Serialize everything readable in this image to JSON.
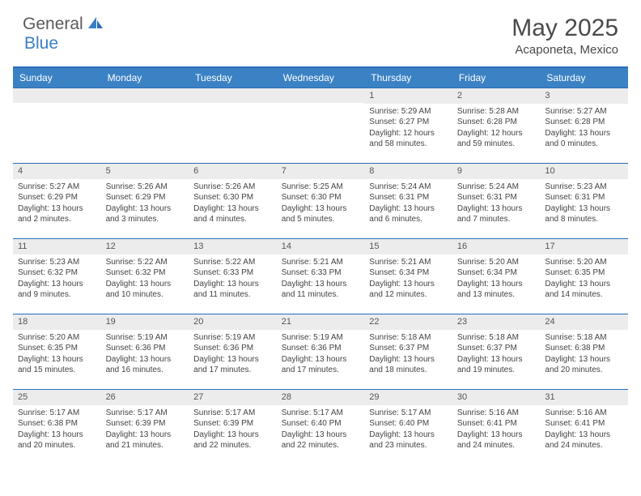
{
  "logo": {
    "text1": "General",
    "text2": "Blue"
  },
  "title": "May 2025",
  "location": "Acaponeta, Mexico",
  "colors": {
    "header_bg": "#3b82c4",
    "header_border": "#2a6db8",
    "daynum_bg": "#ececec",
    "logo_blue": "#3b7fc4",
    "logo_gray": "#5a5a5a",
    "text": "#444444"
  },
  "day_headers": [
    "Sunday",
    "Monday",
    "Tuesday",
    "Wednesday",
    "Thursday",
    "Friday",
    "Saturday"
  ],
  "weeks": [
    [
      null,
      null,
      null,
      null,
      {
        "n": "1",
        "sr": "5:29 AM",
        "ss": "6:27 PM",
        "dl": "12 hours and 58 minutes."
      },
      {
        "n": "2",
        "sr": "5:28 AM",
        "ss": "6:28 PM",
        "dl": "12 hours and 59 minutes."
      },
      {
        "n": "3",
        "sr": "5:27 AM",
        "ss": "6:28 PM",
        "dl": "13 hours and 0 minutes."
      }
    ],
    [
      {
        "n": "4",
        "sr": "5:27 AM",
        "ss": "6:29 PM",
        "dl": "13 hours and 2 minutes."
      },
      {
        "n": "5",
        "sr": "5:26 AM",
        "ss": "6:29 PM",
        "dl": "13 hours and 3 minutes."
      },
      {
        "n": "6",
        "sr": "5:26 AM",
        "ss": "6:30 PM",
        "dl": "13 hours and 4 minutes."
      },
      {
        "n": "7",
        "sr": "5:25 AM",
        "ss": "6:30 PM",
        "dl": "13 hours and 5 minutes."
      },
      {
        "n": "8",
        "sr": "5:24 AM",
        "ss": "6:31 PM",
        "dl": "13 hours and 6 minutes."
      },
      {
        "n": "9",
        "sr": "5:24 AM",
        "ss": "6:31 PM",
        "dl": "13 hours and 7 minutes."
      },
      {
        "n": "10",
        "sr": "5:23 AM",
        "ss": "6:31 PM",
        "dl": "13 hours and 8 minutes."
      }
    ],
    [
      {
        "n": "11",
        "sr": "5:23 AM",
        "ss": "6:32 PM",
        "dl": "13 hours and 9 minutes."
      },
      {
        "n": "12",
        "sr": "5:22 AM",
        "ss": "6:32 PM",
        "dl": "13 hours and 10 minutes."
      },
      {
        "n": "13",
        "sr": "5:22 AM",
        "ss": "6:33 PM",
        "dl": "13 hours and 11 minutes."
      },
      {
        "n": "14",
        "sr": "5:21 AM",
        "ss": "6:33 PM",
        "dl": "13 hours and 11 minutes."
      },
      {
        "n": "15",
        "sr": "5:21 AM",
        "ss": "6:34 PM",
        "dl": "13 hours and 12 minutes."
      },
      {
        "n": "16",
        "sr": "5:20 AM",
        "ss": "6:34 PM",
        "dl": "13 hours and 13 minutes."
      },
      {
        "n": "17",
        "sr": "5:20 AM",
        "ss": "6:35 PM",
        "dl": "13 hours and 14 minutes."
      }
    ],
    [
      {
        "n": "18",
        "sr": "5:20 AM",
        "ss": "6:35 PM",
        "dl": "13 hours and 15 minutes."
      },
      {
        "n": "19",
        "sr": "5:19 AM",
        "ss": "6:36 PM",
        "dl": "13 hours and 16 minutes."
      },
      {
        "n": "20",
        "sr": "5:19 AM",
        "ss": "6:36 PM",
        "dl": "13 hours and 17 minutes."
      },
      {
        "n": "21",
        "sr": "5:19 AM",
        "ss": "6:36 PM",
        "dl": "13 hours and 17 minutes."
      },
      {
        "n": "22",
        "sr": "5:18 AM",
        "ss": "6:37 PM",
        "dl": "13 hours and 18 minutes."
      },
      {
        "n": "23",
        "sr": "5:18 AM",
        "ss": "6:37 PM",
        "dl": "13 hours and 19 minutes."
      },
      {
        "n": "24",
        "sr": "5:18 AM",
        "ss": "6:38 PM",
        "dl": "13 hours and 20 minutes."
      }
    ],
    [
      {
        "n": "25",
        "sr": "5:17 AM",
        "ss": "6:38 PM",
        "dl": "13 hours and 20 minutes."
      },
      {
        "n": "26",
        "sr": "5:17 AM",
        "ss": "6:39 PM",
        "dl": "13 hours and 21 minutes."
      },
      {
        "n": "27",
        "sr": "5:17 AM",
        "ss": "6:39 PM",
        "dl": "13 hours and 22 minutes."
      },
      {
        "n": "28",
        "sr": "5:17 AM",
        "ss": "6:40 PM",
        "dl": "13 hours and 22 minutes."
      },
      {
        "n": "29",
        "sr": "5:17 AM",
        "ss": "6:40 PM",
        "dl": "13 hours and 23 minutes."
      },
      {
        "n": "30",
        "sr": "5:16 AM",
        "ss": "6:41 PM",
        "dl": "13 hours and 24 minutes."
      },
      {
        "n": "31",
        "sr": "5:16 AM",
        "ss": "6:41 PM",
        "dl": "13 hours and 24 minutes."
      }
    ]
  ],
  "labels": {
    "sunrise": "Sunrise:",
    "sunset": "Sunset:",
    "daylight": "Daylight:"
  }
}
